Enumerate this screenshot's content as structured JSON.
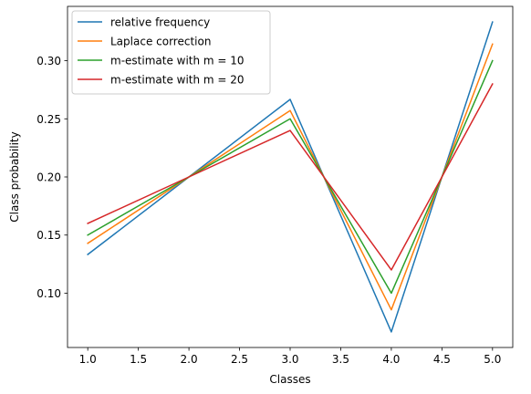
{
  "chart_data": {
    "type": "line",
    "title": "",
    "xlabel": "Classes",
    "ylabel": "Class probability",
    "x": [
      1.0,
      2.0,
      3.0,
      4.0,
      5.0
    ],
    "xlim": [
      0.8,
      5.2
    ],
    "ylim": [
      0.0533,
      0.3467
    ],
    "x_ticks": [
      "1.0",
      "1.5",
      "2.0",
      "2.5",
      "3.0",
      "3.5",
      "4.0",
      "4.5",
      "5.0"
    ],
    "y_ticks": [
      "0.10",
      "0.15",
      "0.20",
      "0.25",
      "0.30"
    ],
    "grid": false,
    "legend_position": "top-left",
    "series": [
      {
        "name": "relative frequency",
        "color": "#1f77b4",
        "values": [
          0.1333,
          0.2,
          0.2667,
          0.0667,
          0.3333
        ]
      },
      {
        "name": "Laplace correction",
        "color": "#ff7f0e",
        "values": [
          0.1429,
          0.2,
          0.2571,
          0.0857,
          0.3143
        ]
      },
      {
        "name": "m-estimate with m = 10",
        "color": "#2ca02c",
        "values": [
          0.15,
          0.2,
          0.25,
          0.1,
          0.3
        ]
      },
      {
        "name": "m-estimate with m = 20",
        "color": "#d62728",
        "values": [
          0.16,
          0.2,
          0.24,
          0.12,
          0.28
        ]
      }
    ]
  }
}
